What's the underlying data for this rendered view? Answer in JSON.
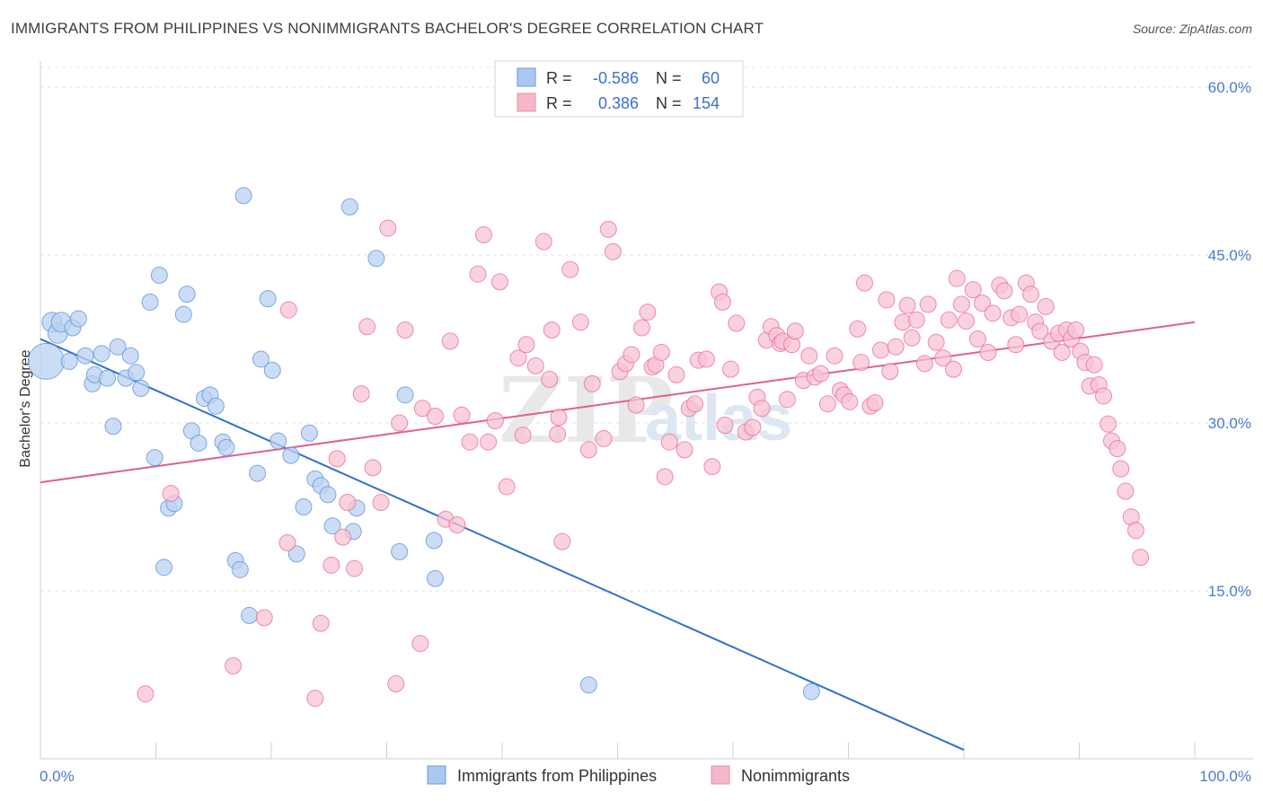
{
  "title": "IMMIGRANTS FROM PHILIPPINES VS NONIMMIGRANTS BACHELOR'S DEGREE CORRELATION CHART",
  "source": "Source: ZipAtlas.com",
  "legend": {
    "r_label": "R =",
    "n_label": "N =",
    "rows": [
      {
        "r": "-0.586",
        "n": "60",
        "color": "#a9c7ef"
      },
      {
        "r": "0.386",
        "n": "154",
        "color": "#f5b7c8"
      }
    ]
  },
  "watermark": {
    "zip": "ZIP",
    "atlas": "atlas"
  },
  "chart_data": {
    "type": "scatter",
    "xlabel": "",
    "ylabel": "Bachelor's Degree",
    "xlim": [
      0,
      100
    ],
    "ylim": [
      0,
      60
    ],
    "x_tick_labels": [
      "0.0%",
      "100.0%"
    ],
    "y_tick_labels": [
      "15.0%",
      "30.0%",
      "45.0%",
      "60.0%"
    ],
    "y_ticks": [
      15,
      30,
      45,
      60
    ],
    "grid": true,
    "series": [
      {
        "name": "Immigrants from Philippines",
        "color": "#5b8fd8",
        "fill": "#b9d2f2",
        "trend": {
          "x0": 0,
          "y0": 37.5,
          "x1": 80,
          "y1": 0.8
        },
        "points": [
          [
            0.5,
            35.5
          ],
          [
            1,
            39
          ],
          [
            1.5,
            38
          ],
          [
            1.8,
            39
          ],
          [
            2.5,
            35.5
          ],
          [
            2.8,
            38.5
          ],
          [
            3.3,
            39.3
          ],
          [
            3.9,
            36
          ],
          [
            4.5,
            33.5
          ],
          [
            4.7,
            34.3
          ],
          [
            5.3,
            36.2
          ],
          [
            5.8,
            34
          ],
          [
            6.3,
            29.7
          ],
          [
            6.7,
            36.8
          ],
          [
            7.4,
            34
          ],
          [
            7.8,
            36
          ],
          [
            8.3,
            34.5
          ],
          [
            8.7,
            33.1
          ],
          [
            9.5,
            40.8
          ],
          [
            9.9,
            26.9
          ],
          [
            10.3,
            43.2
          ],
          [
            10.7,
            17.1
          ],
          [
            11.1,
            22.4
          ],
          [
            11.6,
            22.8
          ],
          [
            12.4,
            39.7
          ],
          [
            12.7,
            41.5
          ],
          [
            13.1,
            29.3
          ],
          [
            13.7,
            28.2
          ],
          [
            14.2,
            32.2
          ],
          [
            14.7,
            32.5
          ],
          [
            15.2,
            31.5
          ],
          [
            15.8,
            28.3
          ],
          [
            16.1,
            27.8
          ],
          [
            16.9,
            17.7
          ],
          [
            17.3,
            16.9
          ],
          [
            17.6,
            50.3
          ],
          [
            18.1,
            12.8
          ],
          [
            18.8,
            25.5
          ],
          [
            19.1,
            35.7
          ],
          [
            19.7,
            41.1
          ],
          [
            20.1,
            34.7
          ],
          [
            20.6,
            28.4
          ],
          [
            21.7,
            27.1
          ],
          [
            22.2,
            18.3
          ],
          [
            22.8,
            22.5
          ],
          [
            23.3,
            29.1
          ],
          [
            23.8,
            25
          ],
          [
            24.3,
            24.4
          ],
          [
            24.9,
            23.6
          ],
          [
            25.3,
            20.8
          ],
          [
            27.1,
            20.3
          ],
          [
            27.4,
            22.4
          ],
          [
            26.8,
            49.3
          ],
          [
            29.1,
            44.7
          ],
          [
            31.1,
            18.5
          ],
          [
            31.6,
            32.5
          ],
          [
            34.1,
            19.5
          ],
          [
            34.2,
            16.1
          ],
          [
            47.5,
            6.6
          ],
          [
            66.8,
            6.0
          ]
        ]
      },
      {
        "name": "Nonimmigrants",
        "color": "#e96a95",
        "fill": "#f7c3d2",
        "trend": {
          "x0": 0,
          "y0": 24.7,
          "x1": 100,
          "y1": 39.0
        },
        "points": [
          [
            9.1,
            5.8
          ],
          [
            11.3,
            23.7
          ],
          [
            16.7,
            8.3
          ],
          [
            19.4,
            12.6
          ],
          [
            21.4,
            19.3
          ],
          [
            21.5,
            40.1
          ],
          [
            23.8,
            5.4
          ],
          [
            24.3,
            12.1
          ],
          [
            25.2,
            17.3
          ],
          [
            25.7,
            26.8
          ],
          [
            26.2,
            19.8
          ],
          [
            26.6,
            22.9
          ],
          [
            27.2,
            17
          ],
          [
            27.8,
            32.6
          ],
          [
            28.3,
            38.6
          ],
          [
            28.8,
            26
          ],
          [
            29.5,
            22.9
          ],
          [
            30.1,
            47.4
          ],
          [
            30.8,
            6.7
          ],
          [
            31.1,
            30
          ],
          [
            31.6,
            38.3
          ],
          [
            32.9,
            10.3
          ],
          [
            33.1,
            31.3
          ],
          [
            34.2,
            30.6
          ],
          [
            35.1,
            21.4
          ],
          [
            35.5,
            37.3
          ],
          [
            36.1,
            20.9
          ],
          [
            36.5,
            30.7
          ],
          [
            37.2,
            28.3
          ],
          [
            37.9,
            43.3
          ],
          [
            38.4,
            46.8
          ],
          [
            38.8,
            28.3
          ],
          [
            39.4,
            30.2
          ],
          [
            39.8,
            42.6
          ],
          [
            40.4,
            24.3
          ],
          [
            41.4,
            35.8
          ],
          [
            41.8,
            28.9
          ],
          [
            42.1,
            37
          ],
          [
            42.9,
            35.1
          ],
          [
            43.6,
            46.2
          ],
          [
            44.1,
            33.9
          ],
          [
            44.3,
            38.3
          ],
          [
            44.8,
            29
          ],
          [
            44.9,
            30.5
          ],
          [
            45.2,
            19.4
          ],
          [
            45.9,
            43.7
          ],
          [
            46.8,
            39
          ],
          [
            47.5,
            27.6
          ],
          [
            47.8,
            33.5
          ],
          [
            48.8,
            28.6
          ],
          [
            49.2,
            47.3
          ],
          [
            49.6,
            45.3
          ],
          [
            50.2,
            34.6
          ],
          [
            50.7,
            35.3
          ],
          [
            51.2,
            36.1
          ],
          [
            51.6,
            31.6
          ],
          [
            52.1,
            38.5
          ],
          [
            52.6,
            39.9
          ],
          [
            53.0,
            35
          ],
          [
            53.3,
            35.2
          ],
          [
            53.8,
            36.3
          ],
          [
            54.1,
            25.2
          ],
          [
            54.5,
            28.3
          ],
          [
            55.1,
            34.3
          ],
          [
            55.8,
            27.6
          ],
          [
            56.2,
            31.3
          ],
          [
            56.7,
            31.7
          ],
          [
            57.0,
            35.6
          ],
          [
            57.7,
            35.7
          ],
          [
            58.2,
            26.1
          ],
          [
            58.8,
            41.7
          ],
          [
            59.1,
            40.8
          ],
          [
            59.3,
            29.8
          ],
          [
            59.8,
            34.8
          ],
          [
            60.3,
            38.9
          ],
          [
            61.1,
            29.2
          ],
          [
            61.7,
            29.6
          ],
          [
            62.1,
            32.3
          ],
          [
            62.5,
            31.3
          ],
          [
            62.9,
            37.4
          ],
          [
            63.3,
            38.6
          ],
          [
            63.8,
            37.8
          ],
          [
            64.1,
            37.1
          ],
          [
            64.3,
            37.3
          ],
          [
            64.7,
            32.1
          ],
          [
            65.1,
            37
          ],
          [
            65.4,
            38.2
          ],
          [
            66.1,
            33.8
          ],
          [
            66.6,
            36
          ],
          [
            67.1,
            34.1
          ],
          [
            67.6,
            34.4
          ],
          [
            68.2,
            31.7
          ],
          [
            68.8,
            36
          ],
          [
            69.3,
            32.9
          ],
          [
            69.6,
            32.5
          ],
          [
            70.1,
            31.9
          ],
          [
            70.8,
            38.4
          ],
          [
            71.1,
            35.4
          ],
          [
            71.4,
            42.5
          ],
          [
            71.9,
            31.5
          ],
          [
            72.3,
            31.8
          ],
          [
            72.8,
            36.5
          ],
          [
            73.3,
            41
          ],
          [
            73.6,
            34.6
          ],
          [
            74.1,
            36.8
          ],
          [
            74.7,
            39
          ],
          [
            75.1,
            40.5
          ],
          [
            75.5,
            37.6
          ],
          [
            75.9,
            39.2
          ],
          [
            76.6,
            35.3
          ],
          [
            76.9,
            40.6
          ],
          [
            77.6,
            37.2
          ],
          [
            78.2,
            35.8
          ],
          [
            78.7,
            39.2
          ],
          [
            79.1,
            34.8
          ],
          [
            79.4,
            42.9
          ],
          [
            79.8,
            40.6
          ],
          [
            80.2,
            39.1
          ],
          [
            80.8,
            41.9
          ],
          [
            81.2,
            37.5
          ],
          [
            81.6,
            40.7
          ],
          [
            82.1,
            36.3
          ],
          [
            82.5,
            39.8
          ],
          [
            83.1,
            42.3
          ],
          [
            83.5,
            41.8
          ],
          [
            84.1,
            39.4
          ],
          [
            84.5,
            37
          ],
          [
            84.8,
            39.7
          ],
          [
            85.4,
            42.5
          ],
          [
            85.8,
            41.5
          ],
          [
            86.2,
            39
          ],
          [
            86.6,
            38.2
          ],
          [
            87.1,
            40.4
          ],
          [
            87.6,
            37.3
          ],
          [
            88.2,
            38
          ],
          [
            88.5,
            36.3
          ],
          [
            88.9,
            38.3
          ],
          [
            89.3,
            37.5
          ],
          [
            89.7,
            38.3
          ],
          [
            90.1,
            36.4
          ],
          [
            90.5,
            35.4
          ],
          [
            90.9,
            33.3
          ],
          [
            91.3,
            35.2
          ],
          [
            91.7,
            33.4
          ],
          [
            92.1,
            32.4
          ],
          [
            92.5,
            29.9
          ],
          [
            92.8,
            28.4
          ],
          [
            93.3,
            27.7
          ],
          [
            93.6,
            25.9
          ],
          [
            94.0,
            23.9
          ],
          [
            94.5,
            21.6
          ],
          [
            94.9,
            20.4
          ],
          [
            95.3,
            18
          ]
        ]
      }
    ]
  },
  "bottom_legend": [
    {
      "label": "Immigrants from Philippines",
      "color": "#a9c7ef"
    },
    {
      "label": "Nonimmigrants",
      "color": "#f5b7c8"
    }
  ]
}
